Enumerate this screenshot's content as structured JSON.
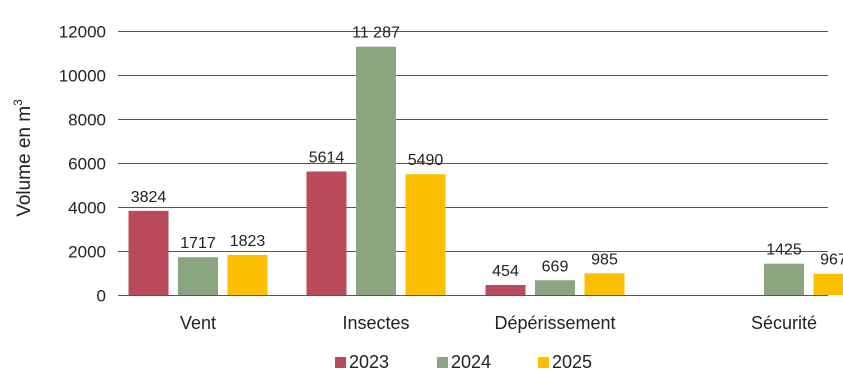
{
  "chart_data": {
    "type": "bar",
    "categories": [
      "Vent",
      "Insectes",
      "Dépérissement",
      "Sécurité"
    ],
    "series": [
      {
        "name": "2023",
        "color": "#b94a5a",
        "values": [
          3824,
          5614,
          454,
          null
        ],
        "labels": [
          "3824",
          "5614",
          "454",
          ""
        ]
      },
      {
        "name": "2024",
        "color": "#8aa57f",
        "values": [
          1717,
          11287,
          669,
          1425
        ],
        "labels": [
          "1717",
          "11 287",
          "669",
          "1425"
        ]
      },
      {
        "name": "2025",
        "color": "#fbbf00",
        "values": [
          1823,
          5490,
          985,
          967
        ],
        "labels": [
          "1823",
          "5490",
          "985",
          "967"
        ]
      }
    ],
    "ylabel": "Volume en m",
    "ylabel_sup": "3",
    "ylim": [
      0,
      12000
    ],
    "yticks": [
      0,
      2000,
      4000,
      6000,
      8000,
      10000,
      12000
    ],
    "grid": true,
    "legend": "bottom"
  }
}
